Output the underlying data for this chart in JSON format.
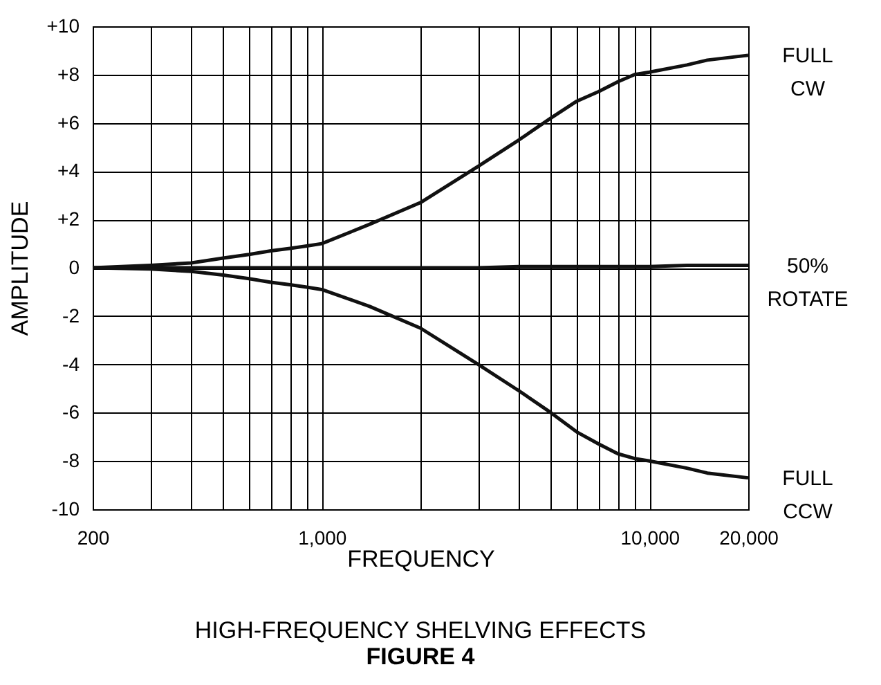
{
  "chart_data": {
    "type": "line",
    "title": "HIGH-FREQUENCY SHELVING EFFECTS",
    "subtitle": "FIGURE 4",
    "xlabel": "FREQUENCY",
    "ylabel": "AMPLITUDE",
    "x": [
      200,
      300,
      400,
      500,
      600,
      700,
      800,
      900,
      1000,
      1400,
      2000,
      3000,
      4000,
      5000,
      6000,
      7000,
      8000,
      9000,
      10000,
      13000,
      15000,
      20000
    ],
    "series": [
      {
        "name": "FULL CW",
        "color": "#111111",
        "values": [
          0,
          0.1,
          0.2,
          0.4,
          0.55,
          0.7,
          0.8,
          0.9,
          1.0,
          1.8,
          2.7,
          4.2,
          5.3,
          6.2,
          6.9,
          7.3,
          7.7,
          8.0,
          8.1,
          8.4,
          8.6,
          8.8
        ]
      },
      {
        "name": "50% ROTATE",
        "color": "#111111",
        "values": [
          0,
          0,
          0,
          0,
          0,
          0,
          0,
          0,
          0,
          0,
          0,
          0,
          0.05,
          0.05,
          0.05,
          0.05,
          0.05,
          0.05,
          0.05,
          0.1,
          0.1,
          0.1
        ]
      },
      {
        "name": "FULL CCW",
        "color": "#111111",
        "values": [
          0,
          -0.05,
          -0.15,
          -0.3,
          -0.45,
          -0.6,
          -0.7,
          -0.8,
          -0.9,
          -1.6,
          -2.5,
          -4.0,
          -5.1,
          -6.0,
          -6.8,
          -7.3,
          -7.7,
          -7.9,
          -8.0,
          -8.3,
          -8.5,
          -8.7
        ]
      }
    ],
    "xlim": [
      200,
      20000
    ],
    "ylim": [
      -10,
      10
    ],
    "xticks": [
      200,
      {
        "value": 300,
        "label": null
      },
      {
        "value": 400,
        "label": null
      },
      {
        "value": 500,
        "label": null
      },
      {
        "value": 600,
        "label": null
      },
      {
        "value": 700,
        "label": null
      },
      {
        "value": 800,
        "label": null
      },
      {
        "value": 900,
        "label": null
      },
      {
        "value": 1000,
        "label": "1,000"
      },
      {
        "value": 2000,
        "label": null
      },
      {
        "value": 3000,
        "label": null
      },
      {
        "value": 4000,
        "label": null
      },
      {
        "value": 5000,
        "label": null
      },
      {
        "value": 6000,
        "label": null
      },
      {
        "value": 7000,
        "label": null
      },
      {
        "value": 8000,
        "label": null
      },
      {
        "value": 9000,
        "label": null
      },
      {
        "value": 10000,
        "label": "10,000"
      },
      {
        "value": 20000,
        "label": "20,000"
      }
    ],
    "yticks": [
      {
        "value": 10,
        "label": "+10"
      },
      {
        "value": 8,
        "label": "+8"
      },
      {
        "value": 6,
        "label": "+6"
      },
      {
        "value": 4,
        "label": "+4"
      },
      {
        "value": 2,
        "label": "+2"
      },
      0,
      -2,
      -4,
      -6,
      -8,
      -10
    ],
    "log": "x",
    "grid": true,
    "marker": "none",
    "line_style": "solid"
  }
}
